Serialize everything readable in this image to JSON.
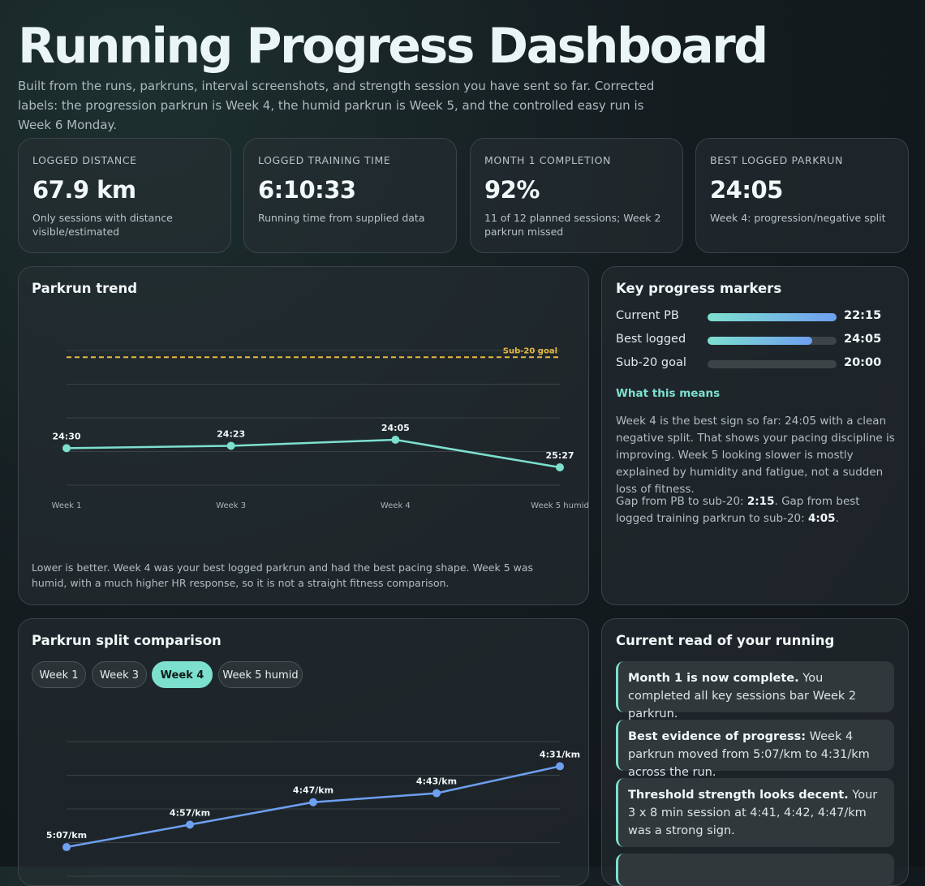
{
  "header": {
    "title": "Running Progress Dashboard",
    "subtitle": "Built from the runs, parkruns, interval screenshots, and strength session you have sent so far. Corrected labels: the progression parkrun is Week 4, the humid parkrun is Week 5, and the controlled easy run is Week 6 Monday."
  },
  "stats": [
    {
      "label": "LOGGED DISTANCE",
      "value": "67.9 km",
      "note": "Only sessions with distance visible/estimated"
    },
    {
      "label": "LOGGED TRAINING TIME",
      "value": "6:10:33",
      "note": "Running time from supplied data"
    },
    {
      "label": "MONTH 1 COMPLETION",
      "value": "92%",
      "note": "11 of 12 planned sessions; Week 2 parkrun missed"
    },
    {
      "label": "BEST LOGGED PARKRUN",
      "value": "24:05",
      "note": "Week 4: progression/negative split"
    }
  ],
  "parkrun_trend": {
    "title": "Parkrun trend",
    "chart_data": {
      "type": "line",
      "categories": [
        "Week 1",
        "Week 3",
        "Week 4",
        "Week 5 humid"
      ],
      "values": [
        1470,
        1463,
        1445,
        1527
      ],
      "value_labels": [
        "24:30",
        "24:23",
        "24:05",
        "25:27"
      ],
      "color": "#7de0cf",
      "ylim": [
        1580,
        1180
      ],
      "yticks": [
        1580,
        1480,
        1380,
        1280,
        1180
      ],
      "grid": true,
      "goal": 1200,
      "goal_label": "Sub-20 goal",
      "goal_color": "#e7b93f"
    },
    "note": "Lower is better. Week 4 was your best logged parkrun and had the best pacing shape. Week 5 was humid, with a much higher HR response, so it is not a straight fitness comparison."
  },
  "markers": {
    "title": "Key progress markers",
    "rows": [
      {
        "label": "Current PB",
        "value": "22:15",
        "fill": 100
      },
      {
        "label": "Best logged",
        "value": "24:05",
        "fill": 81
      },
      {
        "label": "Sub-20 goal",
        "value": "20:00",
        "fill": 0
      }
    ],
    "subtitle": "What this means",
    "paragraph": "Week 4 is the best sign so far: 24:05 with a clean negative split. That shows your pacing discipline is improving. Week 5 looking slower is mostly explained by humidity and fatigue, not a sudden loss of fitness.",
    "gap_parts": [
      "Gap from PB to sub-20: ",
      "2:15",
      ". Gap from best logged training parkrun to sub-20: ",
      "4:05",
      "."
    ]
  },
  "splits": {
    "title": "Parkrun split comparison",
    "tabs": [
      "Week 1",
      "Week 3",
      "Week 4",
      "Week 5 humid"
    ],
    "active_tab": 2,
    "chart_data": {
      "type": "line",
      "values": [
        307,
        297,
        287,
        283,
        271
      ],
      "value_labels": [
        "5:07/km",
        "4:57/km",
        "4:47/km",
        "4:43/km",
        "4:31/km"
      ],
      "color": "#6e9ff0",
      "ylim": [
        320,
        260
      ],
      "yticks": [
        320,
        305,
        290,
        275,
        260
      ],
      "grid": true
    }
  },
  "read": {
    "title": "Current read of your running",
    "items": [
      {
        "lead": "Month 1 is now complete.",
        "text": "You completed all key sessions bar Week 2 parkrun."
      },
      {
        "lead": "Best evidence of progress:",
        "text": "Week 4 parkrun moved from 5:07/km to 4:31/km across the run."
      },
      {
        "lead": "Threshold strength looks decent.",
        "text": "Your 3 x 8 min session at 4:41, 4:42, 4:47/km was a strong sign."
      }
    ]
  }
}
